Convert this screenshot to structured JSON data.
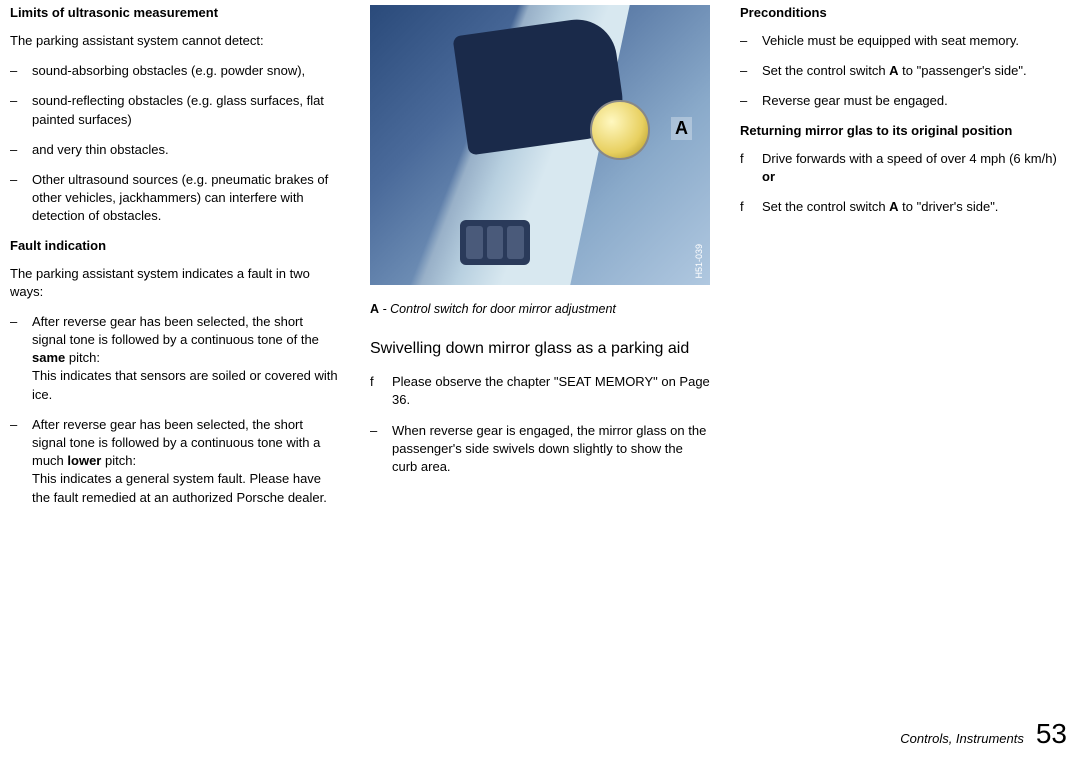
{
  "col1": {
    "h_limits": "Limits of ultrasonic measurement",
    "limits_intro": "The parking assistant system cannot detect:",
    "limits_items": [
      "sound-absorbing obstacles (e.g. powder snow),",
      "sound-reflecting obstacles (e.g. glass surfaces, flat painted surfaces)",
      "and very thin obstacles.",
      "Other ultrasound sources (e.g. pneumatic brakes of other vehicles, jackhammers) can interfere with detection of obstacles."
    ],
    "h_fault": "Fault indication",
    "fault_intro": "The parking assistant system indicates a fault in two ways:",
    "fault1_pre": "After reverse gear has been selected, the short signal tone is followed by a continuous tone of the ",
    "fault1_bold": "same",
    "fault1_post": " pitch:",
    "fault1_desc": "This indicates that sensors are soiled or covered with ice.",
    "fault2_pre": "After reverse gear has been selected, the short signal tone is followed by a continuous tone with a much ",
    "fault2_bold": "lower",
    "fault2_post": " pitch:",
    "fault2_desc": "This indicates a general system fault. Please have the fault remedied at an authorized Porsche dealer."
  },
  "col2": {
    "img_code": "H51-039",
    "caption_a": "A",
    "caption_rest": " - Control switch for door mirror adjustment",
    "section": "Swivelling down mirror glass as a parking aid",
    "f1": "Please observe the chapter \"SEAT MEMORY\" on Page 36.",
    "d1": "When reverse gear is engaged, the mirror glass on the passenger's side swivels down slightly to show the curb area."
  },
  "col3": {
    "h_pre": "Preconditions",
    "pre_items": [
      "Vehicle must be equipped with seat memory.",
      {
        "pre": "Set the control switch ",
        "b": "A",
        "post": " to \"passenger's side\"."
      },
      "Reverse gear must be engaged."
    ],
    "h_ret": "Returning mirror glas to its original position",
    "ret1_pre": "Drive forwards with a speed of over 4 mph (6 km/h) ",
    "ret1_bold": "or",
    "ret2_pre": "Set the control switch ",
    "ret2_b": "A",
    "ret2_post": " to \"driver's side\"."
  },
  "footer": {
    "section": "Controls, Instruments",
    "page": "53"
  }
}
